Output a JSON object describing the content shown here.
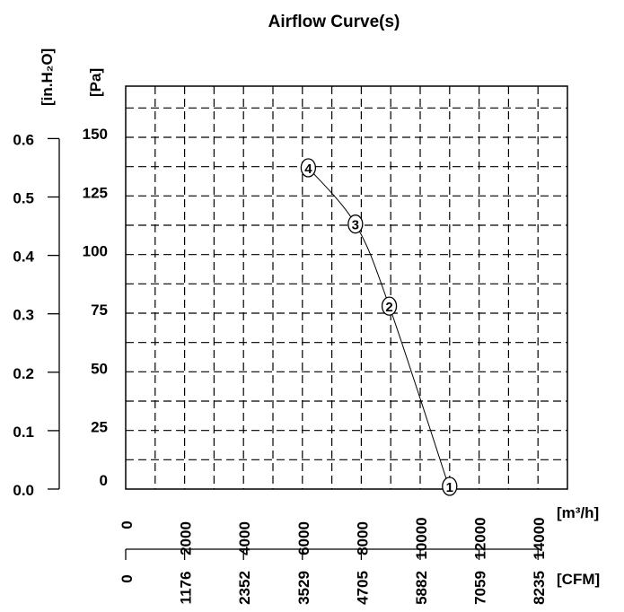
{
  "chart_data": {
    "type": "line",
    "title": "Airflow Curve(s)",
    "xlabel": "[m³/h]",
    "xlabel_secondary": "[CFM]",
    "ylabel": "[Pa]",
    "ylabel_secondary": "[in.H₂O]",
    "xlim": [
      0,
      15000
    ],
    "ylim": [
      0,
      170
    ],
    "grid": true,
    "x_ticks": [
      0,
      2000,
      4000,
      6000,
      8000,
      10000,
      12000,
      14000
    ],
    "x_ticks_secondary": [
      "0",
      "1176",
      "2352",
      "3529",
      "4705",
      "5882",
      "7059",
      "8235"
    ],
    "y_ticks": [
      0,
      25,
      50,
      75,
      100,
      125,
      150
    ],
    "y_ticks_secondary": [
      "0.0",
      "0.1",
      "0.2",
      "0.3",
      "0.4",
      "0.5",
      "0.6"
    ],
    "series": [
      {
        "points": [
          {
            "label": "4",
            "x": 6200,
            "y": 137
          },
          {
            "label": "3",
            "x": 7800,
            "y": 113
          },
          {
            "label": "2",
            "x": 8950,
            "y": 78
          },
          {
            "label": "1",
            "x": 11000,
            "y": 0
          }
        ]
      }
    ],
    "colors": {
      "line": "#000000",
      "grid": "#000000",
      "background": "#ffffff"
    }
  }
}
